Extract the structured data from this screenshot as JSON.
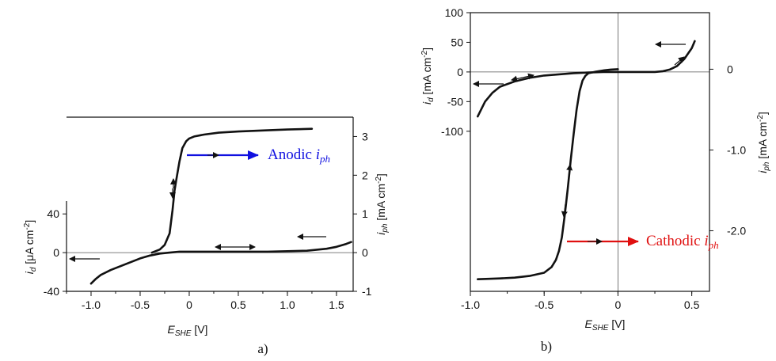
{
  "chart_data": [
    {
      "id": "a",
      "panel_label": "a)",
      "type": "line",
      "xlabel": {
        "main": "E",
        "sub": "SHE",
        "unit": " [V]"
      },
      "ylabel_left": {
        "main": "i",
        "sub": "d",
        "unit": " [μA cm",
        "sup": "-2",
        "close": "]"
      },
      "ylabel_right": {
        "main": "i",
        "sub": "ph",
        "unit": " [mA cm",
        "sup": "-2",
        "close": "]"
      },
      "xlim": [
        -1.25,
        1.67
      ],
      "ylim_left": [
        -40,
        140
      ],
      "ylim_right": [
        -1,
        3.5
      ],
      "x_ticks": [
        -1.0,
        -0.5,
        0.0,
        0.5,
        1.0,
        1.5
      ],
      "x_tick_labels": [
        "-1.0",
        "-0.5",
        "0",
        "0.5",
        "1.0",
        "1.5"
      ],
      "y_left_ticks": [
        -40,
        0,
        40
      ],
      "y_left_tick_labels": [
        "-40",
        "0",
        "40"
      ],
      "y_right_ticks": [
        -1,
        0,
        1,
        2,
        3
      ],
      "y_right_tick_labels": [
        "-1",
        "0",
        "1",
        "2",
        "3"
      ],
      "annotation": {
        "text": "Anodic ",
        "math": "i",
        "math_sub": "ph",
        "color": "#1010e0"
      },
      "series": [
        {
          "axis": "left",
          "x": [
            -1.0,
            -0.95,
            -0.9,
            -0.8,
            -0.7,
            -0.6,
            -0.5,
            -0.4,
            -0.3,
            -0.2,
            -0.1,
            0.0,
            0.2,
            0.4,
            0.6,
            0.8,
            1.0,
            1.2,
            1.4,
            1.5,
            1.6,
            1.65
          ],
          "y": [
            -32,
            -27,
            -23,
            -18,
            -14,
            -10,
            -6,
            -3,
            -1,
            0,
            1,
            1,
            1,
            1,
            1,
            1,
            1.5,
            2,
            4,
            6,
            9,
            11
          ]
        },
        {
          "axis": "right",
          "x": [
            -0.38,
            -0.3,
            -0.25,
            -0.2,
            -0.17,
            -0.15,
            -0.13,
            -0.1,
            -0.07,
            -0.03,
            0.0,
            0.05,
            0.15,
            0.3,
            0.5,
            0.8,
            1.0,
            1.25
          ],
          "y": [
            0.0,
            0.08,
            0.2,
            0.5,
            1.1,
            1.6,
            1.9,
            2.35,
            2.7,
            2.88,
            2.95,
            3.0,
            3.05,
            3.1,
            3.13,
            3.16,
            3.18,
            3.2
          ]
        }
      ]
    },
    {
      "id": "b",
      "panel_label": "b)",
      "type": "line",
      "xlabel": {
        "main": "E",
        "sub": "SHE",
        "unit": " [V]"
      },
      "ylabel_left": {
        "main": "i",
        "sub": "d",
        "unit": " [mA cm",
        "sup": "-2",
        "close": "]"
      },
      "ylabel_right": {
        "main": "i",
        "sub": "ph",
        "unit": " [mA cm",
        "sup": "-2",
        "close": "]"
      },
      "xlim": [
        -1.0,
        0.62
      ],
      "ylim_left": [
        -370,
        100
      ],
      "ylim_right": [
        -2.75,
        0.7
      ],
      "x_ticks": [
        -1.0,
        -0.5,
        0.0,
        0.5
      ],
      "x_tick_labels": [
        "-1.0",
        "-0.5",
        "0",
        "0.5"
      ],
      "y_left_ticks": [
        -100,
        -50,
        0,
        50,
        100
      ],
      "y_left_tick_labels": [
        "-100",
        "-50",
        "0",
        "50",
        "100"
      ],
      "y_right_ticks": [
        0,
        -1,
        -2
      ],
      "y_right_tick_labels": [
        "0",
        "-1.0",
        "-2.0"
      ],
      "annotation": {
        "text": "Cathodic ",
        "math": "i",
        "math_sub": "ph",
        "color": "#e01010"
      },
      "series": [
        {
          "axis": "left",
          "x": [
            -0.95,
            -0.9,
            -0.85,
            -0.8,
            -0.7,
            -0.6,
            -0.5,
            -0.4,
            -0.3,
            -0.2,
            -0.1,
            0.0,
            0.1,
            0.2,
            0.25,
            0.3,
            0.35,
            0.4,
            0.45,
            0.5,
            0.52
          ],
          "y": [
            -75,
            -50,
            -35,
            -25,
            -16,
            -10,
            -6,
            -4,
            -2,
            -1,
            0,
            0,
            0,
            0,
            0,
            1,
            4,
            10,
            22,
            40,
            52
          ]
        },
        {
          "axis": "right",
          "x": [
            -0.95,
            -0.8,
            -0.7,
            -0.6,
            -0.5,
            -0.45,
            -0.42,
            -0.4,
            -0.38,
            -0.36,
            -0.34,
            -0.32,
            -0.3,
            -0.28,
            -0.26,
            -0.24,
            -0.22,
            -0.2,
            -0.15,
            -0.1,
            -0.05,
            0.0
          ],
          "y": [
            -2.6,
            -2.59,
            -2.58,
            -2.56,
            -2.52,
            -2.45,
            -2.36,
            -2.25,
            -2.08,
            -1.8,
            -1.48,
            -1.12,
            -0.8,
            -0.5,
            -0.27,
            -0.14,
            -0.08,
            -0.05,
            -0.03,
            -0.015,
            -0.005,
            0.0
          ]
        }
      ]
    }
  ]
}
